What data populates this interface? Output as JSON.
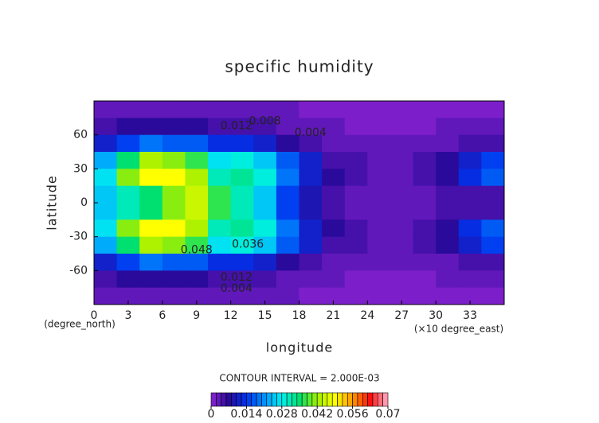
{
  "chart_data": {
    "type": "contour",
    "title": "specific humidity",
    "xlabel": "longitude",
    "ylabel": "latitude",
    "xunit": "(×10 degree_east)",
    "yunit": "(degree_north)",
    "x": [
      1,
      3,
      5,
      7,
      9,
      11,
      13,
      15,
      17,
      19,
      21,
      23,
      25,
      27,
      29,
      31,
      33,
      35
    ],
    "y": [
      82.5,
      67.5,
      52.5,
      37.5,
      22.5,
      7.5,
      -7.5,
      -22.5,
      -37.5,
      -52.5,
      -67.5,
      -82.5
    ],
    "z": [
      [
        0.002,
        0.002,
        0.002,
        0.002,
        0.002,
        0.002,
        0.002,
        0.002,
        0.002,
        0.001,
        0.001,
        0.001,
        0.001,
        0.001,
        0.001,
        0.001,
        0.001,
        0.001
      ],
      [
        0.004,
        0.006,
        0.007,
        0.007,
        0.006,
        0.005,
        0.005,
        0.004,
        0.003,
        0.002,
        0.002,
        0.001,
        0.001,
        0.001,
        0.001,
        0.002,
        0.002,
        0.002
      ],
      [
        0.01,
        0.015,
        0.018,
        0.017,
        0.016,
        0.012,
        0.012,
        0.011,
        0.007,
        0.005,
        0.003,
        0.002,
        0.002,
        0.002,
        0.002,
        0.003,
        0.004,
        0.005
      ],
      [
        0.022,
        0.035,
        0.042,
        0.041,
        0.037,
        0.027,
        0.028,
        0.025,
        0.016,
        0.01,
        0.005,
        0.004,
        0.003,
        0.003,
        0.004,
        0.006,
        0.01,
        0.014
      ],
      [
        0.026,
        0.041,
        0.049,
        0.048,
        0.043,
        0.031,
        0.033,
        0.029,
        0.019,
        0.011,
        0.006,
        0.004,
        0.003,
        0.003,
        0.004,
        0.007,
        0.012,
        0.016
      ],
      [
        0.024,
        0.03,
        0.034,
        0.04,
        0.045,
        0.036,
        0.03,
        0.025,
        0.015,
        0.009,
        0.005,
        0.003,
        0.003,
        0.003,
        0.003,
        0.004,
        0.004,
        0.004
      ],
      [
        0.024,
        0.03,
        0.034,
        0.04,
        0.045,
        0.036,
        0.03,
        0.025,
        0.015,
        0.009,
        0.005,
        0.003,
        0.003,
        0.003,
        0.003,
        0.004,
        0.004,
        0.004
      ],
      [
        0.026,
        0.041,
        0.049,
        0.048,
        0.043,
        0.031,
        0.033,
        0.029,
        0.019,
        0.011,
        0.006,
        0.004,
        0.003,
        0.003,
        0.004,
        0.007,
        0.012,
        0.016
      ],
      [
        0.022,
        0.035,
        0.042,
        0.041,
        0.037,
        0.027,
        0.028,
        0.025,
        0.016,
        0.01,
        0.005,
        0.004,
        0.003,
        0.003,
        0.004,
        0.006,
        0.01,
        0.014
      ],
      [
        0.01,
        0.015,
        0.018,
        0.017,
        0.016,
        0.012,
        0.012,
        0.011,
        0.007,
        0.005,
        0.003,
        0.002,
        0.002,
        0.002,
        0.002,
        0.003,
        0.004,
        0.005
      ],
      [
        0.004,
        0.006,
        0.007,
        0.007,
        0.006,
        0.005,
        0.005,
        0.004,
        0.003,
        0.002,
        0.002,
        0.001,
        0.001,
        0.001,
        0.001,
        0.002,
        0.002,
        0.002
      ],
      [
        0.002,
        0.002,
        0.002,
        0.002,
        0.002,
        0.002,
        0.002,
        0.002,
        0.002,
        0.001,
        0.001,
        0.001,
        0.001,
        0.001,
        0.001,
        0.001,
        0.001,
        0.001
      ]
    ],
    "xlim": [
      0,
      36
    ],
    "xticks": [
      0,
      3,
      6,
      9,
      12,
      15,
      18,
      21,
      24,
      27,
      30,
      33
    ],
    "ylim": [
      -90,
      90
    ],
    "yticks": [
      -60,
      -30,
      0,
      30,
      60
    ],
    "zlim": [
      0,
      0.07
    ],
    "colorbar_ticks": [
      0,
      0.014,
      0.028,
      0.042,
      0.056,
      0.07
    ],
    "contour_interval": {
      "value": 0.002,
      "label": "CONTOUR INTERVAL = 2.000E-03"
    },
    "contour_labels": [
      {
        "value": 0.048,
        "x": 9,
        "y": -42
      },
      {
        "value": 0.036,
        "x": 13.5,
        "y": -37
      },
      {
        "value": 0.012,
        "x": 12.5,
        "y": 68
      },
      {
        "value": 0.008,
        "x": 15,
        "y": 72
      },
      {
        "value": 0.004,
        "x": 19,
        "y": 62
      },
      {
        "value": 0.012,
        "x": 12.5,
        "y": -66
      },
      {
        "value": 0.004,
        "x": 12.5,
        "y": -76
      }
    ],
    "colormap": [
      "#8a22d2",
      "#2a0a9a",
      "#0033ee",
      "#0090ff",
      "#00f0f0",
      "#00e070",
      "#a0f000",
      "#ffff00",
      "#ff9a00",
      "#ff1010",
      "#ffb0c8"
    ]
  }
}
